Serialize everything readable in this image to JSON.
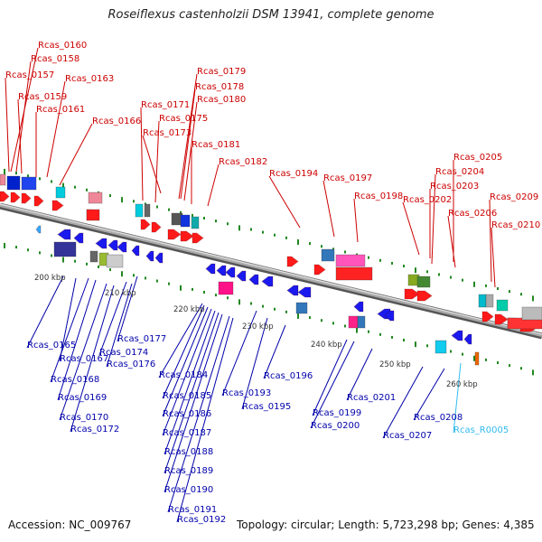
{
  "title": "Roseiflexus castenholzii DSM 13941, complete genome",
  "footer": {
    "accession": "Accession: NC_009767",
    "topology": "Topology: circular; Length: 5,723,298 bp; Genes: 4,385"
  },
  "colors": {
    "forward_label": "#cc0000",
    "reverse_label": "#0000aa",
    "rna_label": "#33bbee",
    "forward_gene": "#ff1a1a",
    "reverse_gene": "#1a1aee",
    "backbone": "#888888",
    "tick": "#228822"
  },
  "scale_labels": [
    "200 kbp",
    "210 kbp",
    "220 kbp",
    "230 kbp",
    "240 kbp",
    "250 kbp",
    "260 kbp"
  ],
  "forward_genes": [
    "Rcas_0160",
    "Rcas_0158",
    "Rcas_0157",
    "Rcas_0159",
    "Rcas_0163",
    "Rcas_0161",
    "Rcas_0166",
    "Rcas_0179",
    "Rcas_0178",
    "Rcas_0171",
    "Rcas_0180",
    "Rcas_0175",
    "Rcas_0173",
    "Rcas_0181",
    "Rcas_0182",
    "Rcas_0194",
    "Rcas_0197",
    "Rcas_0198",
    "Rcas_0205",
    "Rcas_0204",
    "Rcas_0203",
    "Rcas_0202",
    "Rcas_0209",
    "Rcas_0206",
    "Rcas_0210"
  ],
  "reverse_genes": [
    "Rcas_0165",
    "Rcas_0167",
    "Rcas_0168",
    "Rcas_0169",
    "Rcas_0170",
    "Rcas_0172",
    "Rcas_0177",
    "Rcas_0174",
    "Rcas_0176",
    "Rcas_0184",
    "Rcas_0185",
    "Rcas_0186",
    "Rcas_0187",
    "Rcas_0188",
    "Rcas_0189",
    "Rcas_0190",
    "Rcas_0191",
    "Rcas_0192",
    "Rcas_0193",
    "Rcas_0195",
    "Rcas_0196",
    "Rcas_0199",
    "Rcas_0200",
    "Rcas_0201",
    "Rcas_0207",
    "Rcas_0208"
  ],
  "rna_genes": [
    "Rcas_R0005"
  ]
}
